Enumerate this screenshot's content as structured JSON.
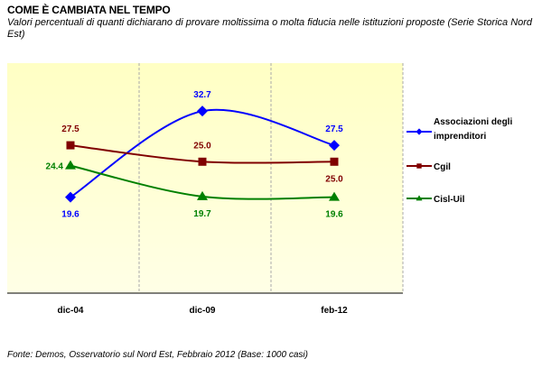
{
  "header": {
    "title": "COME È CAMBIATA NEL TEMPO",
    "subtitle": "Valori percentuali di quanti dichiarano di provare moltissima o molta fiducia nelle istituzioni proposte (Serie Storica Nord Est)"
  },
  "footer": {
    "source": "Fonte: Demos, Osservatorio sul Nord Est, Febbraio 2012 (Base: 1000 casi)"
  },
  "chart_data": {
    "type": "line",
    "title": "COME È CAMBIATA NEL TEMPO",
    "categories": [
      "dic-04",
      "dic-09",
      "feb-12"
    ],
    "ylim": [
      5,
      40
    ],
    "grid": "vertical dashed",
    "legend_position": "right",
    "series": [
      {
        "name": "Associazioni degli imprenditori",
        "legend_lines": [
          "Associazioni degli",
          "imprenditori"
        ],
        "values": [
          19.6,
          32.7,
          27.5
        ],
        "labels": [
          "19.6",
          "32.7",
          "27.5"
        ],
        "color": "#0000ff",
        "marker": "diamond",
        "label_pos": [
          "below",
          "above",
          "above"
        ]
      },
      {
        "name": "Cgil",
        "legend_lines": [
          "Cgil"
        ],
        "values": [
          27.5,
          25.0,
          25.0
        ],
        "labels": [
          "27.5",
          "25.0",
          "25.0"
        ],
        "color": "#800000",
        "marker": "square",
        "label_pos": [
          "above",
          "above",
          "below"
        ]
      },
      {
        "name": "Cisl-Uil",
        "legend_lines": [
          "Cisl-Uil"
        ],
        "values": [
          24.4,
          19.7,
          19.6
        ],
        "labels": [
          "24.4",
          "19.7",
          "19.6"
        ],
        "color": "#008000",
        "marker": "triangle",
        "label_pos": [
          "left",
          "below",
          "below"
        ]
      }
    ]
  }
}
